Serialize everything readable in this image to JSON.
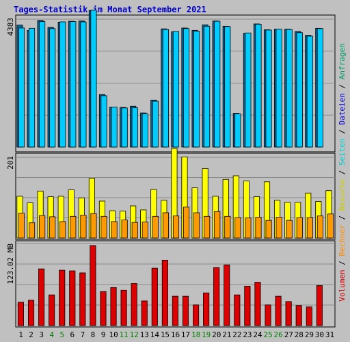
{
  "title": "Tages-Statistik im Monat September 2021",
  "colors": {
    "background": "#c0c0c0",
    "title": "#0000cc",
    "cyan": "#00ccff",
    "darkblue": "#006699",
    "yellow": "#ffff00",
    "orange": "#ff9900",
    "red": "#dd0000",
    "weekend": "#008000",
    "grid": "#8a8a8a"
  },
  "legend": [
    {
      "text": "Volumen",
      "color": "#cc0000"
    },
    {
      "text": "/",
      "color": "#000000"
    },
    {
      "text": "Rechner",
      "color": "#ff8800"
    },
    {
      "text": "/",
      "color": "#000000"
    },
    {
      "text": "Besuche",
      "color": "#cccc00"
    },
    {
      "text": "/",
      "color": "#000000"
    },
    {
      "text": "Seiten",
      "color": "#00cccc"
    },
    {
      "text": "/",
      "color": "#000000"
    },
    {
      "text": "Dateien",
      "color": "#0000cc"
    },
    {
      "text": "/",
      "color": "#000000"
    },
    {
      "text": "Anfragen",
      "color": "#009966"
    }
  ],
  "chart_data": {
    "type": "bar",
    "categories": [
      "1",
      "2",
      "3",
      "4",
      "5",
      "6",
      "7",
      "8",
      "9",
      "10",
      "11",
      "12",
      "13",
      "14",
      "15",
      "16",
      "17",
      "18",
      "19",
      "20",
      "21",
      "22",
      "23",
      "24",
      "25",
      "26",
      "27",
      "28",
      "29",
      "30",
      "31"
    ],
    "weekend_days": [
      "4",
      "5",
      "11",
      "12",
      "18",
      "19",
      "25",
      "26"
    ],
    "panels": [
      {
        "ylabel": "4383",
        "ymax": 4383,
        "series": [
          {
            "name": "Anfragen",
            "values": [
              4180,
              4000,
              4340,
              4100,
              4280,
              4310,
              4320,
              4680,
              1800,
              1370,
              1360,
              1400,
              1170,
              1610,
              4050,
              3950,
              4080,
              4000,
              4190,
              4320,
              4140,
              1160,
              3900,
              4220,
              4020,
              4040,
              4040,
              3960,
              3830,
              4070,
              null
            ]
          },
          {
            "name": "Dateien",
            "values": [
              4080,
              4070,
              4300,
              4060,
              4290,
              4300,
              4290,
              4690,
              1760,
              1370,
              1340,
              1350,
              1140,
              1570,
              4030,
              3960,
              4060,
              3970,
              4140,
              4310,
              4130,
              1140,
              3910,
              4210,
              4010,
              4040,
              4030,
              3920,
              3800,
              4060,
              null
            ]
          }
        ]
      },
      {
        "ylabel": "201",
        "ymax": 201,
        "series": [
          {
            "name": "Besuche",
            "values": [
              104,
              88,
              117,
              103,
              104,
              120,
              100,
              149,
              92,
              68,
              67,
              80,
              70,
              121,
              94,
              223,
              202,
              125,
              173,
              104,
              146,
              155,
              142,
              103,
              140,
              94,
              89,
              89,
              112,
              91,
              118
            ]
          },
          {
            "name": "Rechner",
            "values": [
              62,
              38,
              56,
              53,
              41,
              54,
              57,
              61,
              54,
              41,
              45,
              39,
              40,
              54,
              63,
              55,
              77,
              63,
              54,
              66,
              54,
              51,
              50,
              52,
              44,
              52,
              44,
              51,
              51,
              55,
              60
            ]
          }
        ]
      },
      {
        "ylabel": "123.02 MB",
        "ymax": 123.02,
        "series": [
          {
            "name": "Volumen",
            "values": [
              35,
              38,
              85,
              46,
              83,
              82,
              79,
              120,
              51,
              57,
              53,
              63,
              37,
              86,
              98,
              44,
              44,
              31,
              49,
              87,
              91,
              46,
              59,
              65,
              31,
              44,
              36,
              30,
              28,
              60,
              null
            ]
          }
        ]
      }
    ]
  }
}
